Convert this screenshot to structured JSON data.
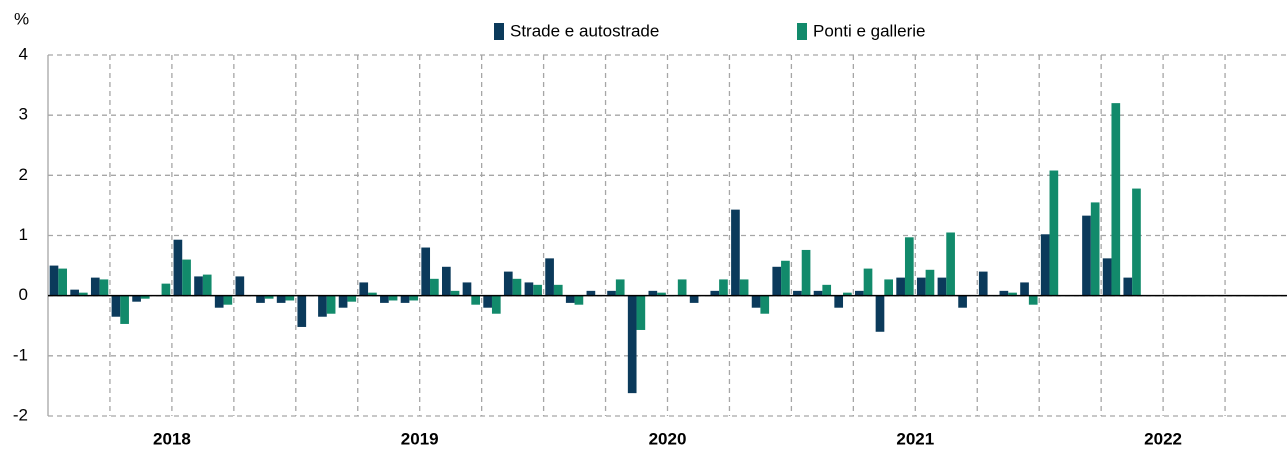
{
  "chart_data": {
    "type": "bar",
    "y_label": "%",
    "years": [
      "2018",
      "2019",
      "2020",
      "2021",
      "2022"
    ],
    "series": [
      {
        "name": "Strade e autostrade",
        "color": "#0b3a5b",
        "values": [
          0.5,
          0.1,
          0.3,
          -0.35,
          -0.1,
          0,
          0.93,
          0.32,
          -0.2,
          0.32,
          -0.12,
          -0.12,
          -0.52,
          -0.35,
          -0.2,
          0.22,
          -0.12,
          -0.12,
          0.8,
          0.48,
          0.22,
          -0.2,
          0.4,
          0.22,
          0.62,
          -0.12,
          0.08,
          0.08,
          -1.62,
          0.08,
          0,
          -0.12,
          0.08,
          1.43,
          -0.2,
          0.48,
          0.08,
          0.08,
          -0.2,
          0.08,
          -0.6,
          0.3,
          0.3,
          0.3,
          -0.2,
          0.4,
          0.08,
          0.22,
          1.02,
          0,
          1.33,
          0.62,
          0.3,
          null,
          null,
          null,
          null,
          null,
          null,
          null
        ]
      },
      {
        "name": "Ponti e gallerie",
        "color": "#128a6b",
        "values": [
          0.45,
          0.05,
          0.27,
          -0.47,
          -0.05,
          0.2,
          0.6,
          0.35,
          -0.15,
          0,
          -0.05,
          -0.08,
          0,
          -0.3,
          -0.1,
          0.05,
          -0.08,
          -0.08,
          0.28,
          0.08,
          -0.15,
          -0.3,
          0.28,
          0.18,
          0.18,
          -0.15,
          0,
          0.27,
          -0.57,
          0.05,
          0.27,
          0,
          0.27,
          0.27,
          -0.3,
          0.58,
          0.76,
          0.18,
          0.05,
          0.45,
          0.27,
          0.97,
          0.43,
          1.05,
          0,
          0,
          0.05,
          -0.15,
          2.08,
          0,
          1.55,
          3.2,
          1.78,
          null,
          null,
          null,
          null,
          null,
          null,
          null
        ]
      }
    ],
    "ylim": [
      -2,
      4
    ],
    "yticks": [
      -2,
      -1,
      0,
      1,
      2,
      3,
      4
    ],
    "grid": true,
    "legend": "top"
  }
}
